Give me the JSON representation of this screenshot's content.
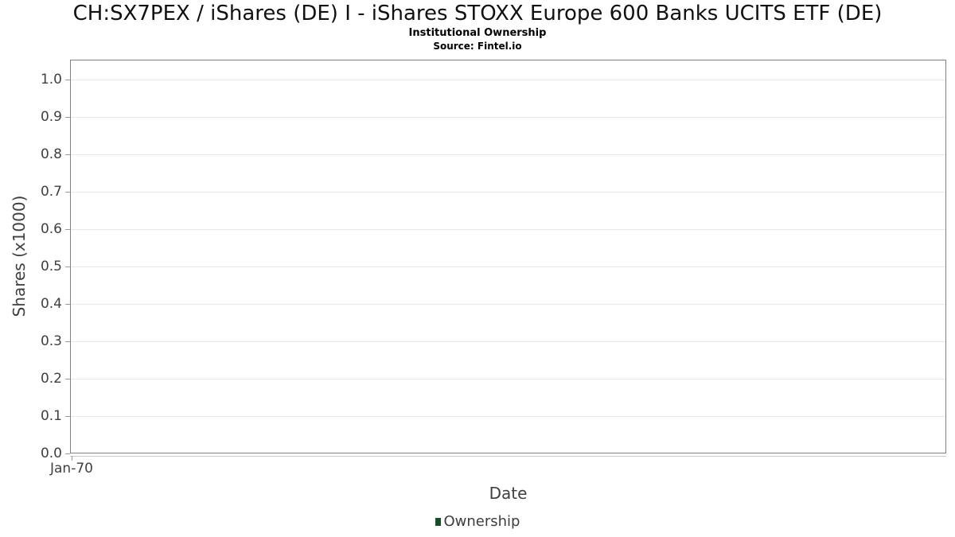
{
  "chart_data": {
    "type": "line",
    "title": "CH:SX7PEX / iShares (DE) I - iShares STOXX Europe 600 Banks UCITS ETF (DE)",
    "subtitle": "Institutional Ownership",
    "source_line": "Source: Fintel.io",
    "xlabel": "Date",
    "ylabel": "Shares (x1000)",
    "x_ticks": [
      "Jan-70"
    ],
    "y_ticks": [
      {
        "value": 0.0,
        "label": "0.0"
      },
      {
        "value": 0.1,
        "label": "0.1"
      },
      {
        "value": 0.2,
        "label": "0.2"
      },
      {
        "value": 0.3,
        "label": "0.3"
      },
      {
        "value": 0.4,
        "label": "0.4"
      },
      {
        "value": 0.5,
        "label": "0.5"
      },
      {
        "value": 0.6,
        "label": "0.6"
      },
      {
        "value": 0.7,
        "label": "0.7"
      },
      {
        "value": 0.8,
        "label": "0.8"
      },
      {
        "value": 0.9,
        "label": "0.9"
      },
      {
        "value": 1.0,
        "label": "1.0"
      }
    ],
    "ylim": [
      0,
      1.053
    ],
    "grid": true,
    "legend_position": "bottom-center",
    "legend": [
      {
        "label": "Ownership",
        "color": "#1a4d2a"
      }
    ],
    "series": [
      {
        "name": "Ownership",
        "x": [],
        "values": [],
        "color": "#1a4d2a"
      }
    ]
  },
  "colors": {
    "plot_border": "#808080",
    "gridline": "#e8e8e8",
    "axis_line": "#c9c9c9",
    "tick": "#9b9b9b",
    "text": "#404040",
    "title_text": "#111111",
    "legend_accent": "#1a4d2a"
  }
}
